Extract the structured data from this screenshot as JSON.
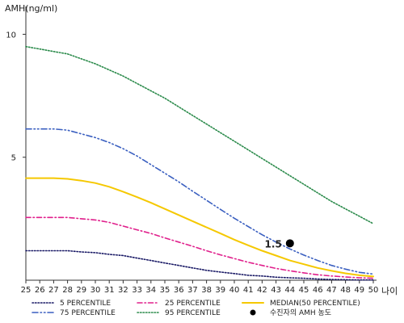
{
  "chart_data": {
    "type": "line",
    "ylabel": "AMH(ng/ml)",
    "xlabel": "나이",
    "x": [
      25,
      26,
      27,
      28,
      29,
      30,
      31,
      32,
      33,
      34,
      35,
      36,
      37,
      38,
      39,
      40,
      41,
      42,
      43,
      44,
      45,
      46,
      47,
      48,
      49,
      50
    ],
    "xlim": [
      25,
      50
    ],
    "ylim": [
      0,
      11
    ],
    "yticks": [
      5,
      10
    ],
    "grid": false,
    "legend_position": "bottom",
    "series": [
      {
        "name": "5 PERCENTILE",
        "color": "#1a1a66",
        "dash": "dotted",
        "values": [
          1.2,
          1.2,
          1.2,
          1.2,
          1.15,
          1.12,
          1.05,
          1.0,
          0.9,
          0.8,
          0.7,
          0.6,
          0.5,
          0.4,
          0.33,
          0.27,
          0.2,
          0.17,
          0.12,
          0.1,
          0.08,
          0.05,
          0.03,
          0.02,
          0.01,
          0.01
        ]
      },
      {
        "name": "25 PERCENTILE",
        "color": "#e0208c",
        "dash": "dashdot",
        "values": [
          2.55,
          2.55,
          2.55,
          2.55,
          2.5,
          2.45,
          2.35,
          2.2,
          2.05,
          1.9,
          1.72,
          1.55,
          1.38,
          1.2,
          1.03,
          0.88,
          0.73,
          0.6,
          0.48,
          0.38,
          0.3,
          0.22,
          0.17,
          0.13,
          0.1,
          0.08
        ]
      },
      {
        "name": "MEDIAN(50 PERCENTILE)",
        "color": "#f5c800",
        "dash": "solid",
        "values": [
          4.15,
          4.15,
          4.15,
          4.12,
          4.05,
          3.95,
          3.8,
          3.6,
          3.38,
          3.15,
          2.9,
          2.65,
          2.4,
          2.15,
          1.9,
          1.65,
          1.42,
          1.2,
          1.0,
          0.8,
          0.65,
          0.5,
          0.38,
          0.28,
          0.2,
          0.15
        ]
      },
      {
        "name": "75 PERCENTILE",
        "color": "#3a5fc0",
        "dash": "dashdotdot",
        "values": [
          6.15,
          6.15,
          6.15,
          6.1,
          5.95,
          5.8,
          5.6,
          5.35,
          5.05,
          4.7,
          4.35,
          4.0,
          3.62,
          3.25,
          2.88,
          2.52,
          2.18,
          1.85,
          1.55,
          1.27,
          1.02,
          0.8,
          0.6,
          0.45,
          0.32,
          0.25
        ]
      },
      {
        "name": "95 PERCENTILE",
        "color": "#2a8a4a",
        "dash": "dotted",
        "values": [
          9.5,
          9.4,
          9.3,
          9.2,
          9.0,
          8.8,
          8.55,
          8.3,
          8.0,
          7.7,
          7.4,
          7.05,
          6.7,
          6.35,
          6.0,
          5.65,
          5.3,
          4.95,
          4.6,
          4.25,
          3.9,
          3.55,
          3.2,
          2.9,
          2.6,
          2.3
        ]
      }
    ],
    "marker": {
      "name": "수진자의 AMH 농도",
      "x": 44,
      "y": 1.5,
      "label": "1.5",
      "color": "#000000"
    }
  }
}
